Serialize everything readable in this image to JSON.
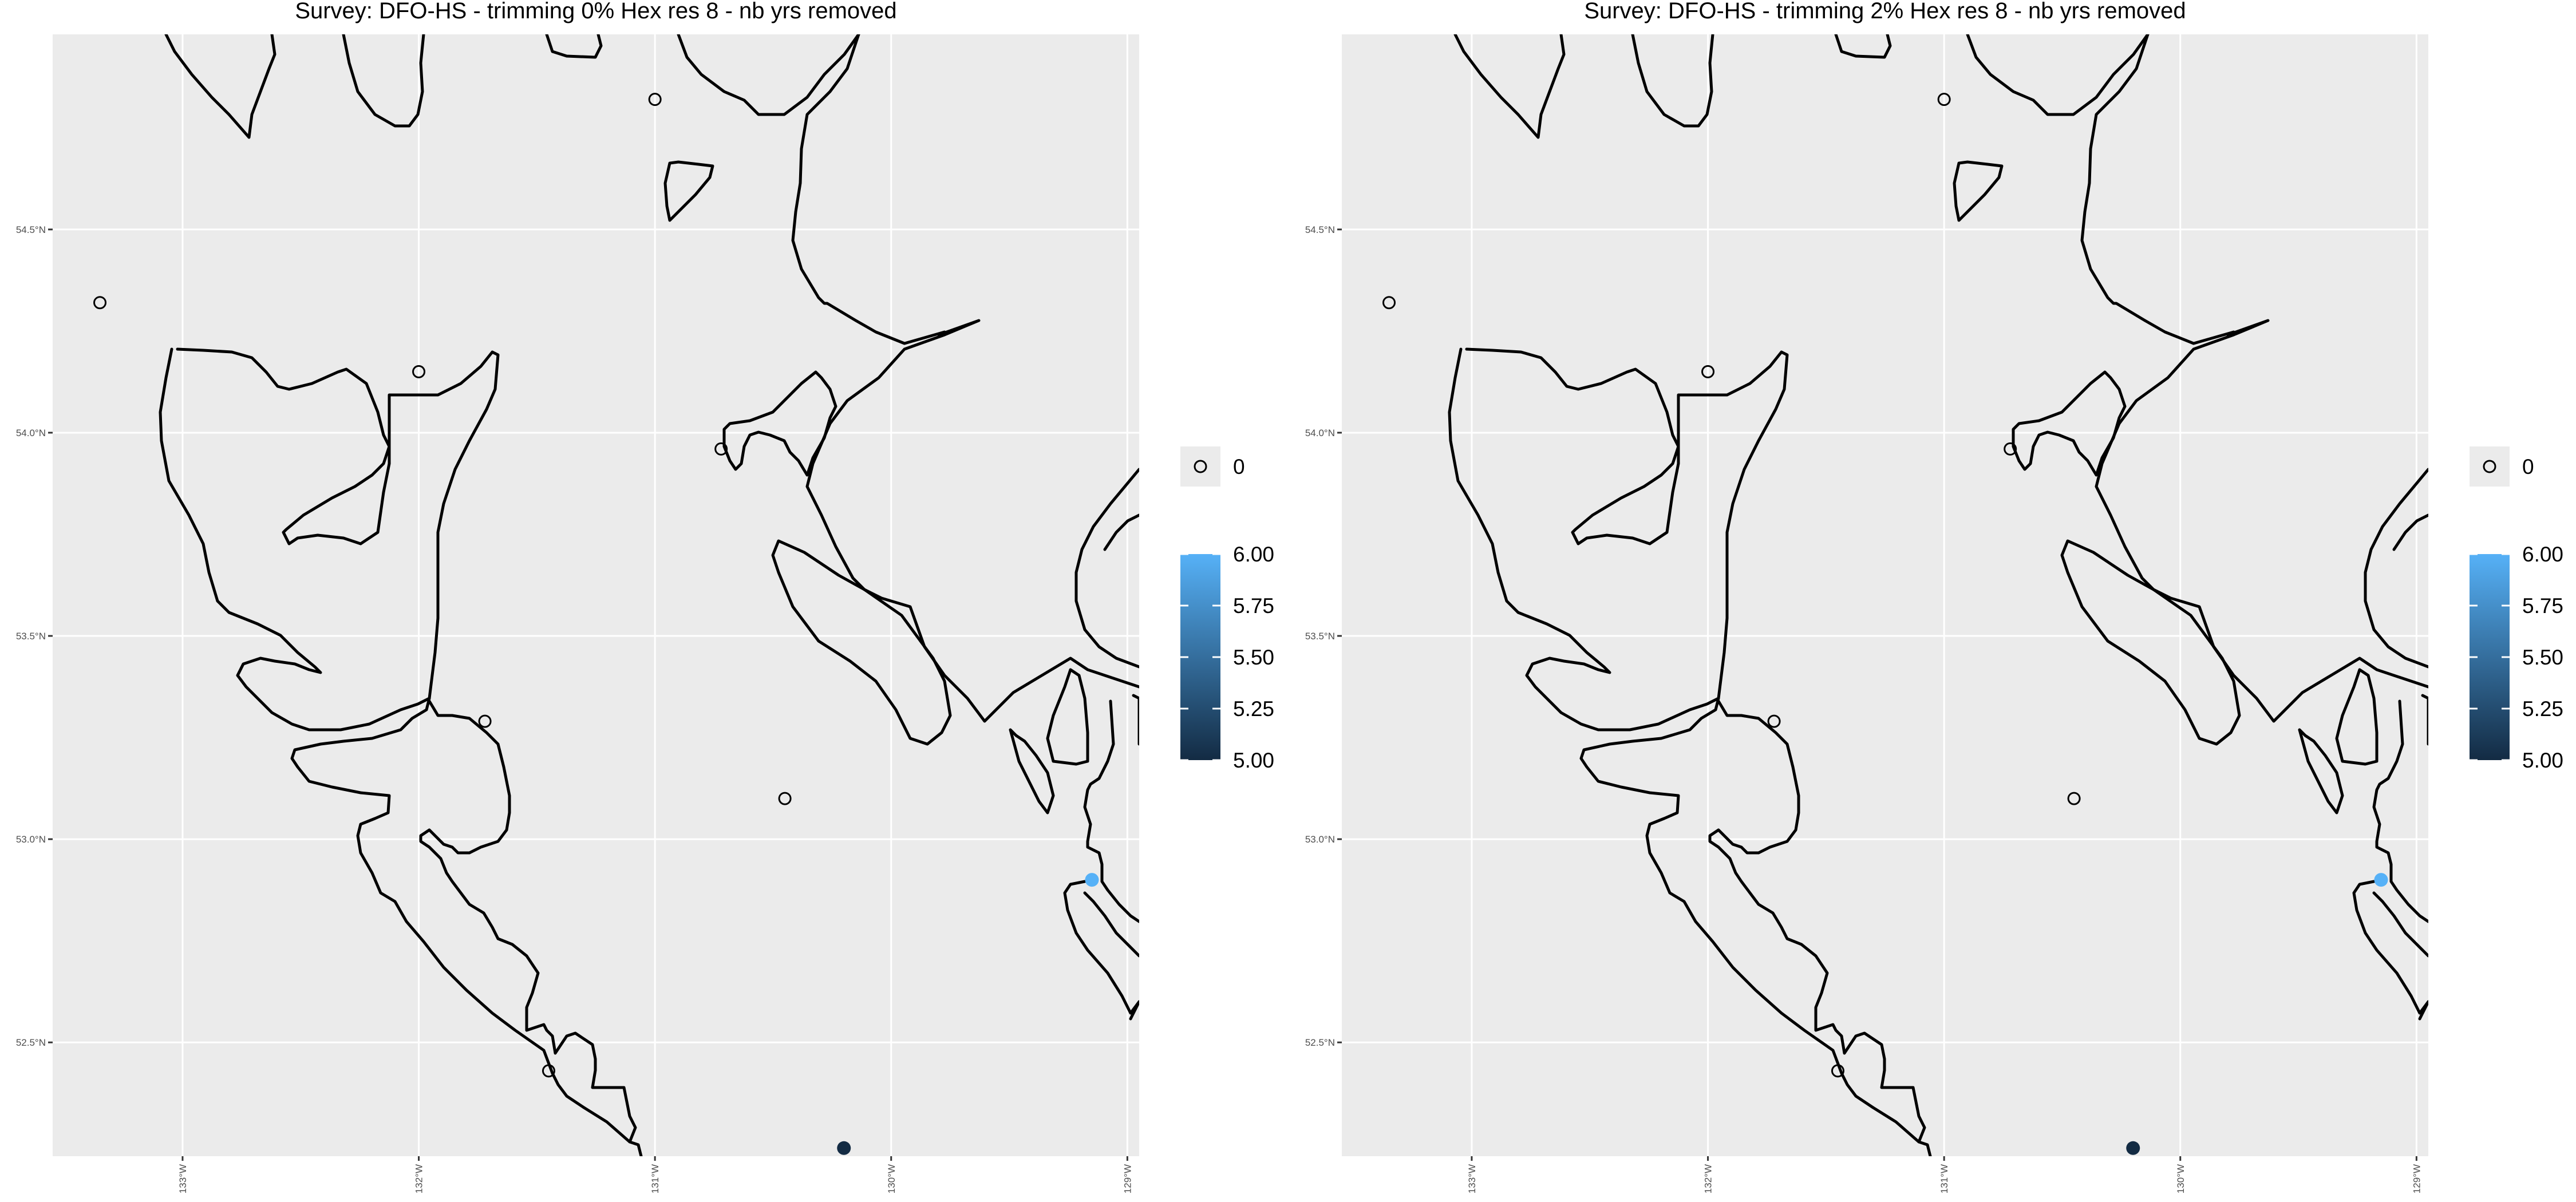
{
  "panels": [
    {
      "title": "Survey: DFO-HS - trimming 0% Hex res 8 - nb yrs removed"
    },
    {
      "title": "Survey: DFO-HS - trimming 2% Hex res 8 - nb yrs removed"
    }
  ],
  "map": {
    "lon_range": [
      -133.55,
      -128.95
    ],
    "lat_range": [
      52.22,
      54.98
    ],
    "lon_ticks": [
      {
        "value": -133,
        "label": "133°W"
      },
      {
        "value": -132,
        "label": "132°W"
      },
      {
        "value": -131,
        "label": "131°W"
      },
      {
        "value": -130,
        "label": "130°W"
      },
      {
        "value": -129,
        "label": "129°W"
      }
    ],
    "lat_ticks": [
      {
        "value": 54.5,
        "label": "54.5°N"
      },
      {
        "value": 54.0,
        "label": "54.0°N"
      },
      {
        "value": 53.5,
        "label": "53.5°N"
      },
      {
        "value": 53.0,
        "label": "53.0°N"
      },
      {
        "value": 52.5,
        "label": "52.5°N"
      }
    ],
    "zero_points": [
      [
        -133.35,
        54.32
      ],
      [
        -132.0,
        54.15
      ],
      [
        -131.0,
        54.82
      ],
      [
        -130.72,
        53.96
      ],
      [
        -131.72,
        53.29
      ],
      [
        -130.45,
        53.1
      ],
      [
        -131.45,
        52.43
      ]
    ],
    "value_points": [
      {
        "lon": -129.15,
        "lat": 52.9,
        "value": 6.0
      },
      {
        "lon": -130.2,
        "lat": 52.24,
        "value": 5.0
      }
    ]
  },
  "colors": {
    "panel_bg": "#ebebeb",
    "grid": "#ffffff",
    "low": "#132b43",
    "high": "#56b1f7"
  },
  "legend": {
    "zero_label": "0",
    "color_ticks": [
      "6.00",
      "5.75",
      "5.50",
      "5.25",
      "5.00"
    ]
  }
}
